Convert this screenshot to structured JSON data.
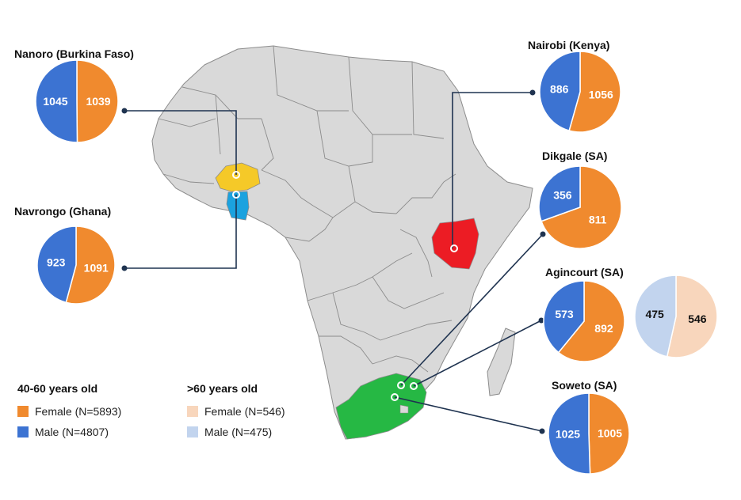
{
  "colors": {
    "female_40_60": "#F08A2E",
    "male_40_60": "#3C73D2",
    "female_60": "#F8D6BC",
    "male_60": "#C2D4EE",
    "land": "#D9D9D9",
    "border": "#8C8C8C",
    "burkina": "#F5C928",
    "ghana": "#1BA2DF",
    "kenya": "#EC1C24",
    "south_africa": "#26B844",
    "connector": "#1F3350"
  },
  "chart_data": [
    {
      "type": "pie",
      "title": "Nanoro (Burkina Faso)",
      "slices": [
        {
          "name": "Female",
          "value": 1039
        },
        {
          "name": "Male",
          "value": 1045
        }
      ]
    },
    {
      "type": "pie",
      "title": "Navrongo (Ghana)",
      "slices": [
        {
          "name": "Female",
          "value": 1091
        },
        {
          "name": "Male",
          "value": 923
        }
      ]
    },
    {
      "type": "pie",
      "title": "Nairobi (Kenya)",
      "slices": [
        {
          "name": "Female",
          "value": 1056
        },
        {
          "name": "Male",
          "value": 886
        }
      ]
    },
    {
      "type": "pie",
      "title": "Dikgale (SA)",
      "slices": [
        {
          "name": "Female",
          "value": 811
        },
        {
          "name": "Male",
          "value": 356
        }
      ]
    },
    {
      "type": "pie",
      "title": "Agincourt (SA)",
      "slices": [
        {
          "name": "Female",
          "value": 892
        },
        {
          "name": "Male",
          "value": 573
        }
      ]
    },
    {
      "type": "pie",
      "title": "",
      "slices": [
        {
          "name": "Female",
          "value": 546
        },
        {
          "name": "Male",
          "value": 475
        }
      ]
    },
    {
      "type": "pie",
      "title": "Soweto (SA)",
      "slices": [
        {
          "name": "Female",
          "value": 1005
        },
        {
          "name": "Male",
          "value": 1025
        }
      ]
    }
  ],
  "legend": {
    "group1_title": "40-60 years old",
    "group1_female": "Female (N=5893)",
    "group1_male": "Male (N=4807)",
    "group2_title": ">60 years old",
    "group2_female": "Female (N=546)",
    "group2_male": "Male (N=475)"
  }
}
